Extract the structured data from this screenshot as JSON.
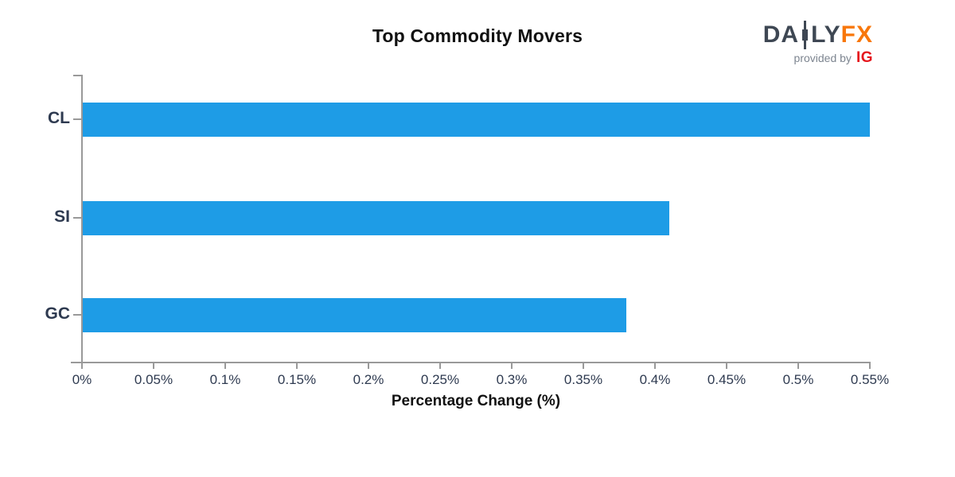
{
  "chart_data": {
    "type": "bar",
    "orientation": "horizontal",
    "title": "Top Commodity Movers",
    "xlabel": "Percentage Change (%)",
    "categories": [
      "CL",
      "SI",
      "GC"
    ],
    "values": [
      0.55,
      0.41,
      0.38
    ],
    "xlim": [
      0,
      0.55
    ],
    "x_tick_labels": [
      "0%",
      "0.05%",
      "0.1%",
      "0.15%",
      "0.2%",
      "0.25%",
      "0.3%",
      "0.35%",
      "0.4%",
      "0.45%",
      "0.5%",
      "0.55%"
    ],
    "bar_color": "#1e9ce6",
    "axis_color": "#999999",
    "tick_label_color": "#2e3a50",
    "legend": "none",
    "grid": "off"
  },
  "logo": {
    "daily_pre": "DA",
    "daily_post": "LY",
    "fx": "FX",
    "provided_by": "provided by",
    "ig": "IG",
    "colors": {
      "daily": "#3e4753",
      "fx": "#f8770b",
      "provided_by": "#7d8590",
      "ig": "#e5161d"
    }
  }
}
